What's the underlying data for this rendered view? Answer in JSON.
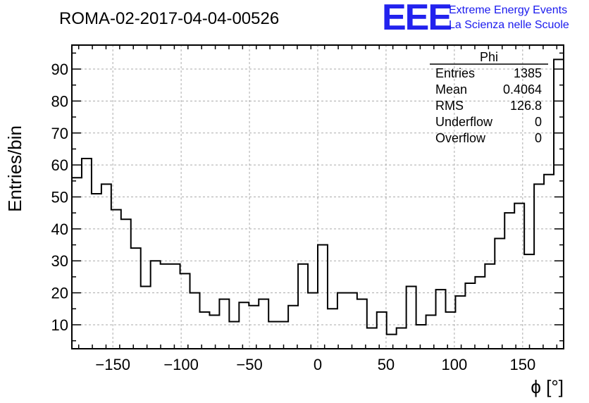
{
  "chart_data": {
    "type": "bar",
    "histogram": true,
    "title": "ROMA-02-2017-04-04-00526",
    "xlabel": "ϕ [°]",
    "ylabel": "Entries/bin",
    "xlim": [
      -180,
      180
    ],
    "ylim": [
      2.5,
      97.5
    ],
    "grid": true,
    "bin_edges_start": -180,
    "bin_width": 7.2,
    "values": [
      56,
      62,
      51,
      54,
      46,
      43,
      34,
      22,
      30,
      29,
      29,
      26,
      20,
      14,
      13,
      18,
      11,
      17,
      16,
      18,
      11,
      11,
      16,
      29,
      20,
      35,
      15,
      20,
      20,
      18,
      9,
      14,
      7,
      9,
      22,
      10,
      13,
      21,
      14,
      19,
      23,
      25,
      29,
      37,
      45,
      48,
      32,
      54,
      57,
      93
    ],
    "x_ticks": [
      -150,
      -100,
      -50,
      0,
      50,
      100,
      150
    ],
    "x_tick_labels": [
      "−150",
      "−100",
      "−50",
      "0",
      "50",
      "100",
      "150"
    ],
    "y_ticks": [
      10,
      20,
      30,
      40,
      50,
      60,
      70,
      80,
      90
    ],
    "y_tick_labels": [
      "10",
      "20",
      "30",
      "40",
      "50",
      "60",
      "70",
      "80",
      "90"
    ]
  },
  "stats_box": {
    "name": "Phi",
    "rows": [
      {
        "label": "Entries",
        "value": "1385"
      },
      {
        "label": "Mean",
        "value": "0.4064"
      },
      {
        "label": "RMS",
        "value": "126.8"
      },
      {
        "label": "Underflow",
        "value": "0"
      },
      {
        "label": "Overflow",
        "value": "0"
      }
    ]
  },
  "logo": {
    "mark": "EEE",
    "line1": "Extreme Energy Events",
    "line2": "La Scienza nelle Scuole",
    "color": "#2222ee"
  }
}
